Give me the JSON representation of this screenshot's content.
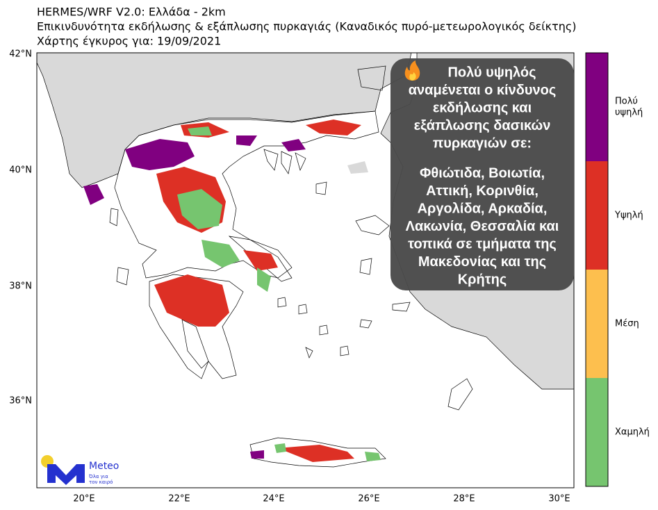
{
  "header": {
    "title": "HERMES/WRF V2.0: Ελλάδα - 2km",
    "subtitle": "Επικινδυνότητα εκδήλωσης & εξάπλωσης πυρκαγιάς (Καναδικός πυρό-μετεωρολογικός δείκτης)",
    "valid": "Χάρτης έγκυρος για: 19/09/2021"
  },
  "map": {
    "lat_labels": [
      "42°N",
      "40°N",
      "38°N",
      "36°N"
    ],
    "lon_labels": [
      "20°E",
      "22°E",
      "24°E",
      "26°E",
      "28°E",
      "30°E"
    ],
    "annotation": {
      "intro": [
        "Πολύ υψηλός",
        "αναμένεται ο κίνδυνος",
        "εκδήλωσης και",
        "εξάπλωσης δασικών",
        "πυρκαγιών σε:"
      ],
      "regions": [
        "Φθιώτιδα, Βοιωτία,",
        "Αττική, Κορινθία,",
        "Αργολίδα, Αρκαδία,",
        "Λακωνία, Θεσσαλία και",
        "τοπικά σε τμήματα της",
        "Μακεδονίας και της",
        "Κρήτης"
      ]
    }
  },
  "legend": {
    "levels": [
      {
        "label": [
          "Πολύ",
          "υψηλή"
        ],
        "color": "#800080"
      },
      {
        "label": [
          "Υψηλή"
        ],
        "color": "#dd3025"
      },
      {
        "label": [
          "Μέση"
        ],
        "color": "#fdbf4e"
      },
      {
        "label": [
          "Χαμηλή"
        ],
        "color": "#76c56f"
      }
    ]
  },
  "logo": {
    "name": "Meteo",
    "tagline": [
      "Όλα για",
      "τον καιρό"
    ]
  }
}
